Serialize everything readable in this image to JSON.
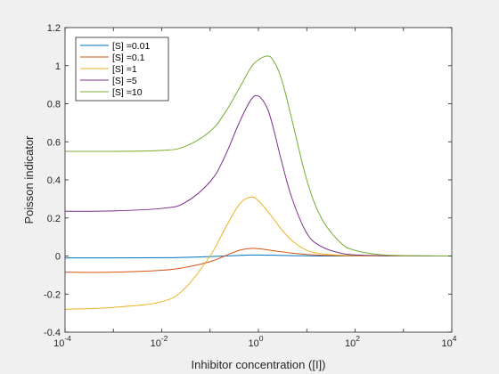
{
  "chart_data": {
    "type": "line",
    "xscale": "log",
    "xlim": [
      0.0001,
      10000
    ],
    "ylim": [
      -0.4,
      1.2
    ],
    "xlabel": "Inhibitor concentration ([I])",
    "ylabel": "Poisson indicator",
    "x_ticks": [
      {
        "base": "10",
        "exp": "-4"
      },
      {
        "base": "10",
        "exp": "-2"
      },
      {
        "base": "10",
        "exp": "0"
      },
      {
        "base": "10",
        "exp": "2"
      },
      {
        "base": "10",
        "exp": "4"
      }
    ],
    "y_ticks": [
      "-0.4",
      "-0.2",
      "0",
      "0.2",
      "0.4",
      "0.6",
      "0.8",
      "1",
      "1.2"
    ],
    "legend_position": "top-left",
    "x": [
      0.0001,
      0.001,
      0.01,
      0.03,
      0.1,
      0.2,
      0.4,
      0.7,
      1,
      1.5,
      2,
      3,
      5,
      10,
      20,
      50,
      100,
      300,
      1000,
      3000,
      10000
    ],
    "series": [
      {
        "name": "[S] =0.01",
        "color": "#0072bd",
        "values": [
          -0.01,
          -0.01,
          -0.009,
          -0.007,
          -0.003,
          0.0,
          0.003,
          0.005,
          0.005,
          0.004,
          0.004,
          0.003,
          0.002,
          0.001,
          0.0,
          0.0,
          0.0,
          0.0,
          0.0,
          0.0,
          0.0
        ]
      },
      {
        "name": "[S] =0.1",
        "color": "#d95319",
        "values": [
          -0.085,
          -0.085,
          -0.075,
          -0.06,
          -0.03,
          0.0,
          0.03,
          0.04,
          0.038,
          0.033,
          0.028,
          0.022,
          0.015,
          0.008,
          0.004,
          0.002,
          0.001,
          0.0,
          0.0,
          0.0,
          0.0
        ]
      },
      {
        "name": "[S] =1",
        "color": "#edb120",
        "values": [
          -0.28,
          -0.27,
          -0.24,
          -0.17,
          0.0,
          0.14,
          0.27,
          0.31,
          0.29,
          0.24,
          0.2,
          0.14,
          0.08,
          0.03,
          0.012,
          0.004,
          0.002,
          0.0,
          0.0,
          0.0,
          0.0
        ]
      },
      {
        "name": "[S] =5",
        "color": "#7e2f8e",
        "values": [
          0.235,
          0.237,
          0.25,
          0.28,
          0.39,
          0.52,
          0.7,
          0.82,
          0.84,
          0.78,
          0.68,
          0.5,
          0.3,
          0.12,
          0.05,
          0.015,
          0.006,
          0.002,
          0.001,
          0.0,
          0.0
        ]
      },
      {
        "name": "[S] =10",
        "color": "#77ac30",
        "values": [
          0.55,
          0.55,
          0.555,
          0.575,
          0.655,
          0.75,
          0.88,
          0.99,
          1.03,
          1.05,
          1.03,
          0.93,
          0.71,
          0.4,
          0.2,
          0.07,
          0.03,
          0.008,
          0.002,
          0.001,
          0.0
        ]
      }
    ]
  }
}
